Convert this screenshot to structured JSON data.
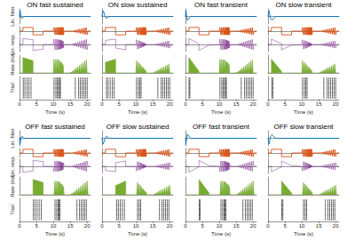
{
  "chart_data": {
    "type": "line",
    "x_label": "Time (s)",
    "xlim": [
      0,
      21
    ],
    "xticks": [
      0,
      5,
      10,
      15,
      20
    ],
    "tick_labels": "x",
    "filter_x": [
      0,
      0.1,
      0.3,
      0.5,
      0.8,
      1.2,
      1.6,
      2,
      2.5,
      3,
      4,
      6,
      21
    ],
    "x": [
      0,
      1,
      1,
      4,
      4,
      7,
      7,
      10,
      10.2,
      10.5,
      10.75,
      11,
      11.2,
      11.4,
      11.55,
      11.7,
      11.85,
      12,
      12.1,
      12.2,
      12.3,
      12.4,
      12.5,
      12.6,
      12.7,
      12.8,
      12.9,
      13,
      13.2,
      15,
      15.25,
      15.5,
      15.75,
      16,
      16.25,
      16.5,
      16.75,
      17,
      17.25,
      17.5,
      17.75,
      18,
      18.25,
      18.5,
      18.75,
      19,
      19.25,
      19.5,
      19.75,
      20,
      20.25,
      21
    ],
    "trials": [
      1,
      2,
      3,
      4,
      5,
      6,
      7,
      8,
      9,
      10
    ],
    "rows": {
      "filter": {
        "type": "line",
        "color": "#0072BD",
        "ylim": [
          -1.2,
          1.2
        ]
      },
      "stimulus": {
        "type": "line",
        "color": "#D95319",
        "ylim": [
          -1.2,
          1.2
        ],
        "values": [
          0,
          0,
          1,
          1,
          -1,
          -1,
          0,
          0,
          1,
          -1,
          1,
          -1,
          1,
          -1,
          1,
          -1,
          1,
          -1,
          1,
          -1,
          1,
          -1,
          1,
          -1,
          1,
          -1,
          1,
          -1,
          0,
          0,
          0.05,
          -0.1,
          0.15,
          -0.2,
          0.25,
          -0.3,
          0.35,
          -0.4,
          0.45,
          -0.5,
          0.55,
          -0.6,
          0.65,
          -0.7,
          0.75,
          -0.8,
          0.85,
          -0.9,
          0.95,
          -1,
          0,
          0
        ]
      },
      "response": {
        "type": "line",
        "color": "#7E2F8E",
        "ylim": [
          -1.2,
          1.2
        ]
      },
      "rate": {
        "type": "area",
        "color": "#77AC30",
        "ylim": [
          0,
          35
        ]
      },
      "raster": {
        "type": "scatter",
        "marker": "line",
        "color": "#000000",
        "ylim": [
          0,
          11
        ]
      }
    },
    "panels": [
      {
        "title": "ON fast sustained",
        "ylabels": {
          "filter": "Lin. filter",
          "response": "Lin. resp.",
          "rate": "Rate (Hz)",
          "raster": "Trial"
        },
        "filter": [
          0,
          1,
          0.5,
          -0.2,
          -0.3,
          -0.1,
          0,
          0,
          0,
          0,
          0,
          0,
          0
        ],
        "response": [
          0,
          0,
          1,
          0.8,
          -1,
          -0.8,
          0,
          0,
          0.9,
          -0.9,
          0.9,
          -0.9,
          0.85,
          -0.85,
          0.85,
          -0.85,
          0.8,
          -0.8,
          0.75,
          -0.75,
          0.7,
          -0.7,
          0.65,
          -0.65,
          0.6,
          -0.6,
          0.55,
          -0.55,
          0,
          0,
          0.05,
          -0.1,
          0.14,
          -0.18,
          0.23,
          -0.27,
          0.32,
          -0.36,
          0.41,
          -0.45,
          0.5,
          -0.54,
          0.59,
          -0.63,
          0.68,
          -0.72,
          0.77,
          -0.81,
          0.86,
          -0.9,
          0,
          0
        ],
        "rate": [
          0,
          0,
          30,
          24,
          0,
          0,
          0,
          0,
          27,
          0,
          27,
          0,
          26,
          0,
          26,
          0,
          24,
          0,
          22,
          0,
          21,
          0,
          20,
          0,
          18,
          0,
          16,
          0,
          0,
          0,
          2,
          0,
          4,
          0,
          7,
          0,
          10,
          0,
          12,
          0,
          15,
          0,
          18,
          0,
          20,
          0,
          23,
          0,
          26,
          0,
          0,
          0
        ],
        "spike_times": [
          1.1,
          1.6,
          2.2,
          2.8,
          3.4,
          10.2,
          10.75,
          11.2,
          11.55,
          11.85,
          12.1,
          16.5,
          17.5,
          18,
          18.5,
          19,
          19.5,
          20
        ]
      },
      {
        "title": "ON slow sustained",
        "filter": [
          0,
          0.4,
          0.9,
          0.7,
          0.1,
          -0.3,
          -0.2,
          -0.05,
          0,
          0,
          0,
          0,
          0
        ],
        "response": [
          0,
          0,
          0.7,
          0.9,
          -0.6,
          -0.9,
          0,
          0,
          0.8,
          -0.8,
          0.7,
          -0.7,
          0.6,
          -0.6,
          0.5,
          -0.5,
          0.4,
          -0.4,
          0.35,
          -0.35,
          0.3,
          -0.3,
          0.25,
          -0.25,
          0.2,
          -0.2,
          0.15,
          -0.15,
          0,
          0,
          0.04,
          -0.07,
          0.1,
          -0.13,
          0.16,
          -0.19,
          0.22,
          -0.25,
          0.29,
          -0.32,
          0.35,
          -0.38,
          0.41,
          -0.44,
          0.48,
          -0.5,
          0.54,
          -0.57,
          0.6,
          -0.63,
          0,
          0
        ],
        "rate": [
          0,
          0,
          21,
          27,
          0,
          0,
          0,
          0,
          24,
          0,
          21,
          0,
          18,
          0,
          15,
          0,
          12,
          0,
          11,
          0,
          9,
          0,
          8,
          0,
          6,
          0,
          5,
          0,
          0,
          0,
          1,
          0,
          3,
          0,
          5,
          0,
          7,
          0,
          9,
          0,
          11,
          0,
          12,
          0,
          14,
          0,
          16,
          0,
          18,
          0,
          0,
          0
        ],
        "spike_times": [
          1.3,
          1.8,
          2.4,
          3,
          3.6,
          10.2,
          10.75,
          11.2,
          11.55,
          16.5,
          17.5,
          18,
          18.5,
          19,
          19.5,
          20
        ]
      },
      {
        "title": "ON fast transient",
        "filter": [
          0,
          1,
          0.2,
          -0.6,
          -0.5,
          -0.2,
          0,
          0,
          0,
          0,
          0,
          0,
          0
        ],
        "response": [
          0,
          0,
          1,
          0.1,
          -1,
          -0.1,
          0,
          0,
          0.9,
          -0.9,
          0.9,
          -0.9,
          0.85,
          -0.85,
          0.85,
          -0.85,
          0.8,
          -0.8,
          0.75,
          -0.75,
          0.7,
          -0.7,
          0.65,
          -0.65,
          0.6,
          -0.6,
          0.55,
          -0.55,
          0,
          0,
          0.05,
          -0.1,
          0.14,
          -0.18,
          0.23,
          -0.27,
          0.32,
          -0.36,
          0.41,
          -0.45,
          0.5,
          -0.54,
          0.59,
          -0.63,
          0.68,
          -0.72,
          0.77,
          -0.81,
          0.86,
          -0.9,
          0,
          0
        ],
        "rate": [
          0,
          0,
          30,
          3,
          0,
          0,
          0,
          0,
          27,
          0,
          27,
          0,
          26,
          0,
          26,
          0,
          24,
          0,
          22,
          0,
          21,
          0,
          20,
          0,
          18,
          0,
          16,
          0,
          0,
          0,
          2,
          0,
          4,
          0,
          7,
          0,
          10,
          0,
          12,
          0,
          15,
          0,
          18,
          0,
          20,
          0,
          23,
          0,
          26,
          0,
          0,
          0
        ],
        "spike_times": [
          1.05,
          1.3,
          10.2,
          10.75,
          11.2,
          11.55,
          11.85,
          12.1,
          16.5,
          17.5,
          18,
          18.5,
          19,
          19.5,
          20
        ]
      },
      {
        "title": "ON slow transient",
        "filter": [
          0,
          0.4,
          0.9,
          0.4,
          -0.4,
          -0.6,
          -0.3,
          -0.1,
          0,
          0,
          0,
          0,
          0
        ],
        "response": [
          0,
          0,
          0.9,
          0.1,
          -0.9,
          -0.1,
          0,
          0,
          0.8,
          -0.8,
          0.7,
          -0.7,
          0.6,
          -0.6,
          0.5,
          -0.5,
          0.4,
          -0.4,
          0.35,
          -0.35,
          0.3,
          -0.3,
          0.25,
          -0.25,
          0.2,
          -0.2,
          0.15,
          -0.15,
          0,
          0,
          0.04,
          -0.07,
          0.1,
          -0.13,
          0.16,
          -0.19,
          0.22,
          -0.25,
          0.29,
          -0.32,
          0.35,
          -0.38,
          0.41,
          -0.44,
          0.48,
          -0.5,
          0.54,
          -0.57,
          0.6,
          -0.63,
          0,
          0
        ],
        "rate": [
          0,
          0,
          27,
          3,
          0,
          0,
          0,
          0,
          24,
          0,
          21,
          0,
          18,
          0,
          15,
          0,
          12,
          0,
          11,
          0,
          9,
          0,
          8,
          0,
          6,
          0,
          5,
          0,
          0,
          0,
          1,
          0,
          3,
          0,
          5,
          0,
          7,
          0,
          9,
          0,
          11,
          0,
          12,
          0,
          14,
          0,
          16,
          0,
          18,
          0,
          0,
          0
        ],
        "spike_times": [
          1.1,
          1.4,
          10.2,
          10.75,
          11.2,
          11.55,
          16.5,
          17.5,
          18,
          18.5,
          19,
          19.5,
          20
        ]
      },
      {
        "title": "OFF fast sustained",
        "ylabels": {
          "filter": "Lin. filter",
          "response": "Lin. resp.",
          "rate": "Rate (Hz)",
          "raster": "Trial"
        },
        "filter": [
          0,
          -1,
          -0.5,
          0.2,
          0.3,
          0.1,
          0,
          0,
          0,
          0,
          0,
          0,
          0
        ],
        "response": [
          0,
          0,
          -1,
          -0.8,
          1,
          0.8,
          0,
          0,
          -0.9,
          0.9,
          -0.9,
          0.9,
          -0.85,
          0.85,
          -0.85,
          0.85,
          -0.8,
          0.8,
          -0.75,
          0.75,
          -0.7,
          0.7,
          -0.65,
          0.65,
          -0.6,
          0.6,
          -0.55,
          0.55,
          0,
          0,
          -0.05,
          0.1,
          -0.14,
          0.18,
          -0.23,
          0.27,
          -0.32,
          0.36,
          -0.41,
          0.45,
          -0.5,
          0.54,
          -0.59,
          0.63,
          -0.68,
          0.72,
          -0.77,
          0.81,
          -0.86,
          0.9,
          0,
          0
        ],
        "rate": [
          0,
          0,
          0,
          0,
          30,
          24,
          0,
          0,
          0,
          27,
          0,
          27,
          0,
          26,
          0,
          26,
          0,
          24,
          0,
          22,
          0,
          21,
          0,
          20,
          0,
          18,
          0,
          16,
          0,
          0,
          0,
          3,
          0,
          5,
          0,
          8,
          0,
          11,
          0,
          14,
          0,
          16,
          0,
          19,
          0,
          22,
          0,
          24,
          0,
          27,
          0,
          0
        ],
        "spike_times": [
          4.1,
          4.6,
          5.2,
          5.8,
          6.4,
          10.5,
          11,
          11.4,
          11.7,
          12,
          17,
          17.75,
          18.25,
          18.75,
          19.25,
          19.75
        ]
      },
      {
        "title": "OFF slow sustained",
        "filter": [
          0,
          -0.4,
          -0.9,
          -0.7,
          -0.1,
          0.3,
          0.2,
          0.05,
          0,
          0,
          0,
          0,
          0
        ],
        "response": [
          0,
          0,
          -0.7,
          -0.9,
          0.6,
          0.9,
          0,
          0,
          -0.8,
          0.8,
          -0.7,
          0.7,
          -0.6,
          0.6,
          -0.5,
          0.5,
          -0.4,
          0.4,
          -0.35,
          0.35,
          -0.3,
          0.3,
          -0.25,
          0.25,
          -0.2,
          0.2,
          -0.15,
          0.15,
          0,
          0,
          -0.04,
          0.07,
          -0.1,
          0.13,
          -0.16,
          0.19,
          -0.22,
          0.25,
          -0.29,
          0.32,
          -0.35,
          0.38,
          -0.41,
          0.44,
          -0.48,
          0.5,
          -0.54,
          0.57,
          -0.6,
          0.63,
          0,
          0
        ],
        "rate": [
          0,
          0,
          0,
          0,
          18,
          27,
          0,
          0,
          0,
          24,
          0,
          21,
          0,
          18,
          0,
          15,
          0,
          12,
          0,
          11,
          0,
          9,
          0,
          8,
          0,
          6,
          0,
          5,
          0,
          0,
          0,
          2,
          0,
          4,
          0,
          6,
          0,
          8,
          0,
          10,
          0,
          11,
          0,
          13,
          0,
          15,
          0,
          17,
          0,
          19,
          0,
          0
        ],
        "spike_times": [
          4.3,
          4.8,
          5.4,
          6,
          6.6,
          10.5,
          11,
          11.4,
          17,
          17.75,
          18.25,
          18.75,
          19.25,
          19.75
        ]
      },
      {
        "title": "OFF fast transient",
        "filter": [
          0,
          -1,
          -0.2,
          0.6,
          0.5,
          0.2,
          0,
          0,
          0,
          0,
          0,
          0,
          0
        ],
        "response": [
          0,
          0,
          -1,
          -0.1,
          1,
          0.1,
          0,
          0,
          -0.9,
          0.9,
          -0.9,
          0.9,
          -0.85,
          0.85,
          -0.85,
          0.85,
          -0.8,
          0.8,
          -0.75,
          0.75,
          -0.7,
          0.7,
          -0.65,
          0.65,
          -0.6,
          0.6,
          -0.55,
          0.55,
          0,
          0,
          -0.05,
          0.1,
          -0.14,
          0.18,
          -0.23,
          0.27,
          -0.32,
          0.36,
          -0.41,
          0.45,
          -0.5,
          0.54,
          -0.59,
          0.63,
          -0.68,
          0.72,
          -0.77,
          0.81,
          -0.86,
          0.9,
          0,
          0
        ],
        "rate": [
          0,
          0,
          0,
          0,
          30,
          3,
          0,
          0,
          0,
          27,
          0,
          27,
          0,
          26,
          0,
          26,
          0,
          24,
          0,
          22,
          0,
          21,
          0,
          20,
          0,
          18,
          0,
          16,
          0,
          0,
          0,
          3,
          0,
          5,
          0,
          8,
          0,
          11,
          0,
          14,
          0,
          16,
          0,
          19,
          0,
          22,
          0,
          24,
          0,
          27,
          0,
          0
        ],
        "spike_times": [
          4.05,
          4.3,
          10.5,
          11,
          11.4,
          11.7,
          12,
          17,
          17.75,
          18.25,
          18.75,
          19.25,
          19.75
        ]
      },
      {
        "title": "OFF slow transient",
        "filter": [
          0,
          -0.4,
          -0.9,
          -0.4,
          0.4,
          0.6,
          0.3,
          0.1,
          0,
          0,
          0,
          0,
          0
        ],
        "response": [
          0,
          0,
          -0.9,
          -0.1,
          0.9,
          0.1,
          0,
          0,
          -0.8,
          0.8,
          -0.7,
          0.7,
          -0.6,
          0.6,
          -0.5,
          0.5,
          -0.4,
          0.4,
          -0.35,
          0.35,
          -0.3,
          0.3,
          -0.25,
          0.25,
          -0.2,
          0.2,
          -0.15,
          0.15,
          0,
          0,
          -0.04,
          0.07,
          -0.1,
          0.13,
          -0.16,
          0.19,
          -0.22,
          0.25,
          -0.29,
          0.32,
          -0.35,
          0.38,
          -0.41,
          0.44,
          -0.48,
          0.5,
          -0.54,
          0.57,
          -0.6,
          0.63,
          0,
          0
        ],
        "rate": [
          0,
          0,
          0,
          0,
          27,
          3,
          0,
          0,
          0,
          24,
          0,
          21,
          0,
          18,
          0,
          15,
          0,
          12,
          0,
          11,
          0,
          9,
          0,
          8,
          0,
          6,
          0,
          5,
          0,
          0,
          0,
          2,
          0,
          4,
          0,
          6,
          0,
          8,
          0,
          10,
          0,
          11,
          0,
          13,
          0,
          15,
          0,
          17,
          0,
          19,
          0,
          0
        ],
        "spike_times": [
          4.1,
          4.4,
          10.5,
          11,
          11.4,
          17,
          17.75,
          18.25,
          18.75,
          19.25,
          19.75
        ]
      }
    ]
  }
}
